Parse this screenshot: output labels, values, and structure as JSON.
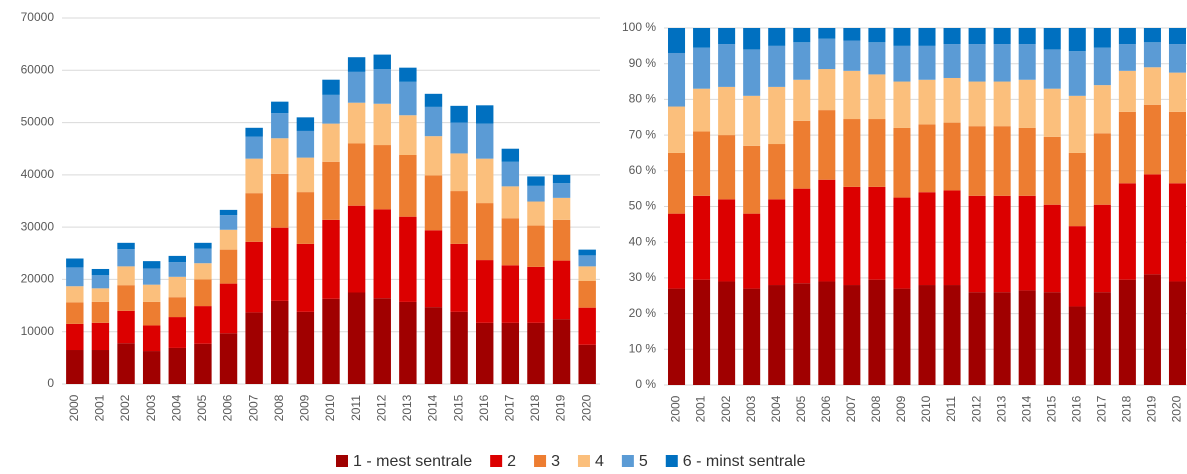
{
  "chart_data": [
    {
      "type": "stacked_bar",
      "categories": [
        "2000",
        "2001",
        "2002",
        "2003",
        "2004",
        "2005",
        "2006",
        "2007",
        "2008",
        "2009",
        "2010",
        "2011",
        "2012",
        "2013",
        "2014",
        "2015",
        "2016",
        "2017",
        "2018",
        "2019",
        "2020"
      ],
      "ylim": [
        0,
        70000
      ],
      "yticks": [
        0,
        10000,
        20000,
        30000,
        40000,
        50000,
        60000,
        70000
      ],
      "grid": true,
      "series": [
        {
          "name": "1 - mest sentrale",
          "color": "#a00000",
          "values": [
            6500,
            6500,
            7800,
            6300,
            6900,
            7700,
            9700,
            13700,
            15900,
            13800,
            16300,
            17500,
            16400,
            15700,
            14700,
            13800,
            11700,
            11700,
            11700,
            12400,
            7500
          ]
        },
        {
          "name": "2",
          "color": "#dc0000",
          "values": [
            5000,
            5200,
            6200,
            4900,
            5900,
            7200,
            9500,
            13500,
            14000,
            13000,
            15100,
            16600,
            17000,
            16300,
            14700,
            13000,
            12000,
            11000,
            10700,
            11200,
            7100
          ]
        },
        {
          "name": "3",
          "color": "#ed7d31",
          "values": [
            4100,
            4000,
            4900,
            4500,
            3800,
            5100,
            6500,
            9300,
            10300,
            9900,
            11100,
            11900,
            12300,
            11800,
            10500,
            10100,
            10900,
            9000,
            7900,
            7800,
            5100
          ]
        },
        {
          "name": "4",
          "color": "#fbbf7c",
          "values": [
            3100,
            2600,
            3600,
            3300,
            3900,
            3100,
            3800,
            6600,
            6800,
            6600,
            7300,
            7800,
            7900,
            7600,
            7500,
            7200,
            8500,
            6100,
            4600,
            4200,
            2800
          ]
        },
        {
          "name": "5",
          "color": "#5b9bd5",
          "values": [
            3600,
            2500,
            3300,
            3100,
            2800,
            2800,
            2800,
            4200,
            4800,
            5100,
            5500,
            5900,
            6600,
            6400,
            5600,
            5900,
            6700,
            4700,
            3000,
            2800,
            2100
          ]
        },
        {
          "name": "6 - minst sentrale",
          "color": "#0070c0",
          "values": [
            1700,
            1200,
            1200,
            1400,
            1200,
            1100,
            1000,
            1700,
            2200,
            2600,
            2900,
            2800,
            2800,
            2700,
            2500,
            3200,
            3500,
            2500,
            1800,
            1600,
            1100
          ]
        }
      ]
    },
    {
      "type": "stacked_bar",
      "categories": [
        "2000",
        "2001",
        "2002",
        "2003",
        "2004",
        "2005",
        "2006",
        "2007",
        "2008",
        "2009",
        "2010",
        "2011",
        "2012",
        "2013",
        "2014",
        "2015",
        "2016",
        "2017",
        "2018",
        "2019",
        "2020"
      ],
      "ylim": [
        0,
        100
      ],
      "grid": true,
      "yticks": [
        {
          "value": 0,
          "label": "0 %"
        },
        {
          "value": 10,
          "label": "10 %"
        },
        {
          "value": 20,
          "label": "20 %"
        },
        {
          "value": 30,
          "label": "30 %"
        },
        {
          "value": 40,
          "label": "40 %"
        },
        {
          "value": 50,
          "label": "50 %"
        },
        {
          "value": 60,
          "label": "60 %"
        },
        {
          "value": 70,
          "label": "70 %"
        },
        {
          "value": 80,
          "label": "80 %"
        },
        {
          "value": 90,
          "label": "90 %"
        },
        {
          "value": 100,
          "label": "100 %"
        }
      ],
      "series": [
        {
          "color": "#a00000",
          "values": [
            27,
            29.5,
            29,
            27,
            28,
            28.5,
            29,
            28,
            29.5,
            27,
            28,
            28,
            26,
            26,
            26.5,
            26,
            22,
            26,
            29.5,
            31,
            29
          ]
        },
        {
          "color": "#dc0000",
          "values": [
            21,
            23.5,
            23,
            21,
            24,
            26.5,
            28.5,
            27.5,
            26,
            25.5,
            26,
            26.5,
            27,
            27,
            26.5,
            24.5,
            22.5,
            24.5,
            27,
            28,
            27.5
          ]
        },
        {
          "color": "#ed7d31",
          "values": [
            17,
            18,
            18,
            19,
            15.5,
            19,
            19.5,
            19,
            19,
            19.5,
            19,
            19,
            19.5,
            19.5,
            19,
            19,
            20.5,
            20,
            20,
            19.5,
            20
          ]
        },
        {
          "color": "#fbbf7c",
          "values": [
            13,
            12,
            13.5,
            14,
            16,
            11.5,
            11.5,
            13.5,
            12.5,
            13,
            12.5,
            12.5,
            12.5,
            12.5,
            13.5,
            13.5,
            16,
            13.5,
            11.5,
            10.5,
            11
          ]
        },
        {
          "color": "#5b9bd5",
          "values": [
            15,
            11.5,
            12,
            13,
            11.5,
            10.5,
            8.5,
            8.5,
            9,
            10,
            9.5,
            9.5,
            10.5,
            10.5,
            10,
            11,
            12.5,
            10.5,
            7.5,
            7,
            8
          ]
        },
        {
          "color": "#0070c0",
          "values": [
            7,
            5.5,
            4.5,
            6,
            5,
            4,
            3,
            3.5,
            4,
            5,
            5,
            4.5,
            4.5,
            4.5,
            4.5,
            6,
            6.5,
            5.5,
            4.5,
            4,
            4.5
          ]
        }
      ]
    }
  ]
}
